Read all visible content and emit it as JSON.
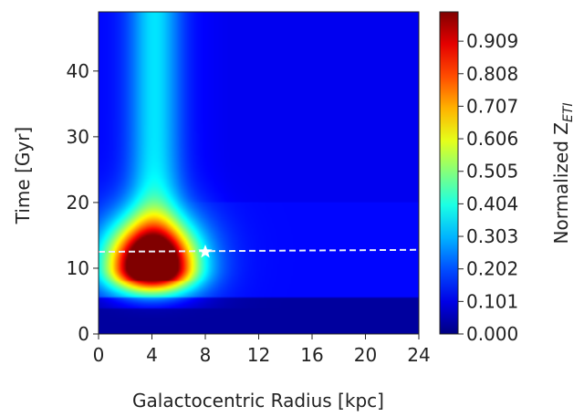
{
  "chart_data": {
    "type": "heatmap",
    "title": "",
    "xlabel": "Galactocentric Radius [kpc]",
    "ylabel": "Time [Gyr]",
    "colorbar_label_prefix": "Normalized Z",
    "colorbar_label_subscript": "ETI",
    "colormap": "jet",
    "xlim": [
      0,
      24
    ],
    "ylim": [
      0,
      49
    ],
    "x_ticks": [
      0,
      4,
      8,
      12,
      16,
      20,
      24
    ],
    "x_tick_labels": [
      "0",
      "4",
      "8",
      "12",
      "16",
      "20",
      "24"
    ],
    "y_ticks": [
      0,
      10,
      20,
      30,
      40
    ],
    "y_tick_labels": [
      "0",
      "10",
      "20",
      "30",
      "40"
    ],
    "colorbar_range": [
      0,
      1
    ],
    "colorbar_ticks": [
      0.0,
      0.101,
      0.202,
      0.303,
      0.404,
      0.505,
      0.606,
      0.707,
      0.808,
      0.909
    ],
    "colorbar_tick_labels": [
      "0.000",
      "0.101",
      "0.202",
      "0.303",
      "0.404",
      "0.505",
      "0.606",
      "0.707",
      "0.808",
      "0.909"
    ],
    "peak": {
      "x": 4,
      "y": 10,
      "value": 1.0
    },
    "reference_line": {
      "style": "dashed",
      "color": "#e8eef8",
      "y_start": 12.5,
      "y_end": 12.8,
      "x_start": 0,
      "x_end": 24
    },
    "marker": {
      "symbol": "star",
      "x": 8,
      "y": 12.5,
      "color": "#ffffff"
    }
  }
}
